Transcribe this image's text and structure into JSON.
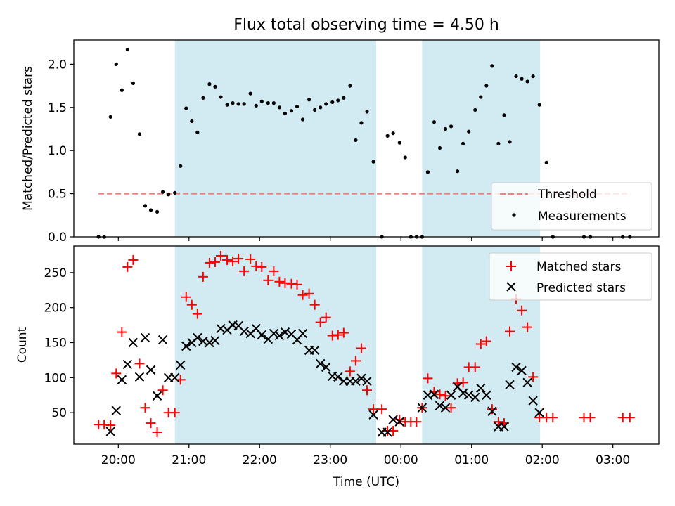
{
  "chart_data": [
    {
      "type": "scatter",
      "title": "Flux total observing time = 4.50 h",
      "ylabel": "Matched/Predicted stars",
      "xlabel": "",
      "xlim": [
        -0.63,
        7.65
      ],
      "ylim": [
        0,
        2.28
      ],
      "yticks": [
        {
          "value": 0.0,
          "label": "0.0"
        },
        {
          "value": 0.5,
          "label": "0.5"
        },
        {
          "value": 1.0,
          "label": "1.0"
        },
        {
          "value": 1.5,
          "label": "1.5"
        },
        {
          "value": 2.0,
          "label": "2.0"
        }
      ],
      "legend": {
        "placement": "lower-right",
        "entries": [
          "Threshold",
          "Measurements"
        ]
      },
      "shaded_intervals": [
        [
          0.8,
          3.65
        ],
        [
          4.3,
          5.97
        ]
      ],
      "colors": {
        "shade": "#add8e6",
        "threshold": "#f08080",
        "measurements": "#000000"
      },
      "series": [
        {
          "name": "Threshold",
          "type": "line",
          "style": "dashed",
          "x": [
            -0.28,
            7.25
          ],
          "y": [
            0.5,
            0.5
          ]
        },
        {
          "name": "Measurements",
          "type": "scatter",
          "x": [
            -0.28,
            -0.2,
            -0.11,
            -0.03,
            0.05,
            0.13,
            0.21,
            0.3,
            0.38,
            0.46,
            0.55,
            0.63,
            0.71,
            0.8,
            0.88,
            0.96,
            1.04,
            1.12,
            1.2,
            1.29,
            1.37,
            1.45,
            1.54,
            1.62,
            1.7,
            1.78,
            1.87,
            1.95,
            2.03,
            2.12,
            2.2,
            2.28,
            2.36,
            2.45,
            2.53,
            2.61,
            2.7,
            2.78,
            2.86,
            2.94,
            3.03,
            3.11,
            3.19,
            3.28,
            3.36,
            3.44,
            3.52,
            3.61,
            3.73,
            3.81,
            3.89,
            3.98,
            4.06,
            4.14,
            4.22,
            4.3,
            4.38,
            4.47,
            4.55,
            4.63,
            4.71,
            4.8,
            4.88,
            4.96,
            5.05,
            5.13,
            5.21,
            5.29,
            5.38,
            5.46,
            5.54,
            5.63,
            5.71,
            5.79,
            5.87,
            5.96,
            6.06,
            6.15,
            6.59,
            6.68,
            7.14,
            7.24
          ],
          "y": [
            0,
            0,
            1.39,
            2.0,
            1.7,
            2.17,
            1.78,
            1.19,
            0.36,
            0.31,
            0.29,
            0.52,
            0.49,
            0.51,
            0.82,
            1.49,
            1.34,
            1.21,
            1.61,
            1.77,
            1.74,
            1.62,
            1.53,
            1.55,
            1.54,
            1.54,
            1.66,
            1.52,
            1.57,
            1.55,
            1.55,
            1.5,
            1.43,
            1.46,
            1.51,
            1.36,
            1.59,
            1.47,
            1.5,
            1.54,
            1.56,
            1.58,
            1.61,
            1.75,
            1.12,
            1.32,
            1.45,
            0.87,
            0,
            1.17,
            1.2,
            1.09,
            0.92,
            0,
            0,
            0,
            0.75,
            1.33,
            1.03,
            1.25,
            1.28,
            0.76,
            1.08,
            1.22,
            1.47,
            1.62,
            1.75,
            1.98,
            1.08,
            1.41,
            1.1,
            1.86,
            1.83,
            1.8,
            1.86,
            1.53,
            0.86,
            0,
            0,
            0,
            0,
            0
          ]
        }
      ]
    },
    {
      "type": "scatter",
      "title": "",
      "ylabel": "Count",
      "xlabel": "Time (UTC)",
      "xlim": [
        -0.63,
        7.65
      ],
      "ylim": [
        5,
        288
      ],
      "yticks": [
        {
          "value": 50,
          "label": "50"
        },
        {
          "value": 100,
          "label": "100"
        },
        {
          "value": 150,
          "label": "150"
        },
        {
          "value": 200,
          "label": "200"
        },
        {
          "value": 250,
          "label": "250"
        }
      ],
      "xticks": [
        {
          "value": 0,
          "label": "20:00"
        },
        {
          "value": 1,
          "label": "21:00"
        },
        {
          "value": 2,
          "label": "22:00"
        },
        {
          "value": 3,
          "label": "23:00"
        },
        {
          "value": 4,
          "label": "00:00"
        },
        {
          "value": 5,
          "label": "01:00"
        },
        {
          "value": 6,
          "label": "02:00"
        },
        {
          "value": 7,
          "label": "03:00"
        }
      ],
      "legend": {
        "placement": "upper-right",
        "entries": [
          "Matched stars",
          "Predicted stars"
        ]
      },
      "shaded_intervals": [
        [
          0.8,
          3.65
        ],
        [
          4.3,
          5.97
        ]
      ],
      "colors": {
        "shade": "#add8e6",
        "matched": "#ff0000",
        "predicted": "#000000"
      },
      "series": [
        {
          "name": "Matched stars",
          "marker": "+",
          "x": [
            -0.28,
            -0.2,
            -0.11,
            -0.03,
            0.05,
            0.13,
            0.21,
            0.3,
            0.38,
            0.46,
            0.55,
            0.63,
            0.71,
            0.8,
            0.88,
            0.96,
            1.04,
            1.12,
            1.2,
            1.29,
            1.37,
            1.45,
            1.54,
            1.62,
            1.7,
            1.78,
            1.87,
            1.95,
            2.03,
            2.12,
            2.2,
            2.28,
            2.36,
            2.45,
            2.53,
            2.61,
            2.7,
            2.78,
            2.86,
            2.94,
            3.03,
            3.11,
            3.19,
            3.28,
            3.36,
            3.44,
            3.52,
            3.61,
            3.73,
            3.81,
            3.89,
            3.98,
            4.06,
            4.14,
            4.22,
            4.3,
            4.38,
            4.47,
            4.55,
            4.63,
            4.71,
            4.8,
            4.88,
            4.96,
            5.05,
            5.13,
            5.21,
            5.29,
            5.38,
            5.46,
            5.54,
            5.63,
            5.71,
            5.79,
            5.87,
            5.96,
            6.06,
            6.15,
            6.59,
            6.68,
            7.14,
            7.24
          ],
          "y": [
            33,
            33,
            32,
            106,
            165,
            258,
            268,
            120,
            57,
            35,
            22,
            82,
            50,
            50,
            97,
            215,
            204,
            191,
            244,
            264,
            265,
            274,
            268,
            266,
            270,
            252,
            269,
            259,
            258,
            239,
            252,
            237,
            235,
            234,
            233,
            218,
            220,
            204,
            179,
            186,
            160,
            161,
            164,
            109,
            124,
            142,
            82,
            55,
            55,
            24,
            24,
            40,
            37,
            37,
            37,
            57,
            99,
            80,
            76,
            74,
            57,
            92,
            93,
            115,
            115,
            148,
            152,
            55,
            37,
            35,
            166,
            212,
            196,
            172,
            101,
            43,
            43,
            43,
            43,
            43,
            43,
            43
          ]
        },
        {
          "name": "Predicted stars",
          "marker": "x",
          "x": [
            -0.11,
            -0.03,
            0.05,
            0.13,
            0.21,
            0.3,
            0.38,
            0.46,
            0.55,
            0.63,
            0.71,
            0.8,
            0.88,
            0.96,
            1.04,
            1.12,
            1.2,
            1.29,
            1.37,
            1.45,
            1.54,
            1.62,
            1.7,
            1.78,
            1.87,
            1.95,
            2.03,
            2.12,
            2.2,
            2.28,
            2.36,
            2.45,
            2.53,
            2.61,
            2.7,
            2.78,
            2.86,
            2.94,
            3.03,
            3.11,
            3.19,
            3.28,
            3.36,
            3.44,
            3.52,
            3.61,
            3.73,
            3.81,
            3.89,
            3.98,
            4.3,
            4.38,
            4.47,
            4.55,
            4.63,
            4.71,
            4.8,
            4.88,
            4.96,
            5.05,
            5.13,
            5.21,
            5.29,
            5.38,
            5.46,
            5.54,
            5.63,
            5.71,
            5.79,
            5.87,
            5.96
          ],
          "y": [
            23,
            53,
            97,
            119,
            150,
            101,
            157,
            111,
            74,
            154,
            100,
            100,
            118,
            145,
            150,
            157,
            152,
            150,
            153,
            170,
            168,
            175,
            174,
            166,
            163,
            170,
            161,
            155,
            163,
            160,
            165,
            162,
            154,
            163,
            139,
            139,
            120,
            115,
            102,
            101,
            95,
            95,
            95,
            99,
            95,
            47,
            22,
            22,
            40,
            37,
            57,
            75,
            76,
            60,
            57,
            75,
            87,
            78,
            75,
            72,
            85,
            75,
            52,
            30,
            30,
            90,
            115,
            110,
            93,
            67,
            50
          ]
        }
      ]
    }
  ]
}
